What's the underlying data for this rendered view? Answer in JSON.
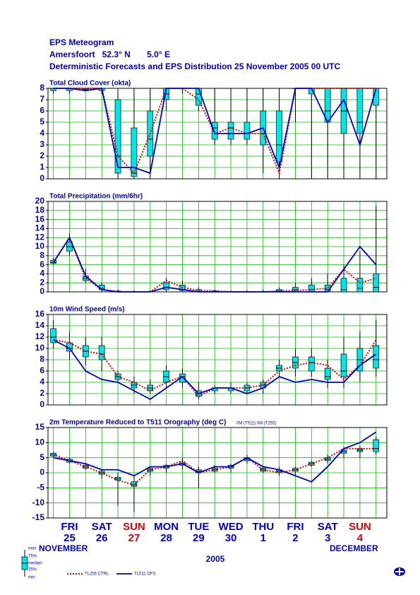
{
  "header": {
    "title": "EPS Meteogram",
    "location": "Amersfoort   52.3° N       5.0° E",
    "subtitle": "Deterministic Forecasts and EPS Distribution 25 November 2005  00 UTC"
  },
  "chart_data": [
    {
      "type": "box",
      "title": "Total Cloud Cover (okta)",
      "x": [
        0,
        12,
        24,
        36,
        48,
        60,
        72,
        84,
        96,
        108,
        120,
        132,
        144,
        156,
        168,
        180,
        192,
        204,
        216,
        228,
        240
      ],
      "xlim": [
        -4,
        248
      ],
      "xticks": [
        0,
        12,
        24,
        36,
        48,
        60,
        72,
        84,
        96,
        108,
        120,
        132,
        144,
        156,
        168,
        180,
        192,
        204,
        216,
        228,
        240
      ],
      "ylim": [
        0,
        8
      ],
      "yticks": [
        0,
        1,
        2,
        3,
        4,
        5,
        6,
        7,
        8
      ],
      "grid": true,
      "box": {
        "min": [
          7.5,
          7.5,
          7.8,
          7.5,
          0,
          0,
          0,
          6,
          7.5,
          6,
          3,
          3,
          3,
          0.5,
          0,
          5,
          0,
          0,
          0,
          0,
          0
        ],
        "q1": [
          7.8,
          7.8,
          7.9,
          7.8,
          0.5,
          0.2,
          2,
          7,
          8,
          6.5,
          3.5,
          3.5,
          3.5,
          3,
          1.5,
          8,
          7.5,
          5,
          4,
          4,
          6.5
        ],
        "median": [
          8,
          8,
          8,
          8,
          2,
          0.5,
          3.5,
          7.5,
          8,
          7.5,
          4.5,
          4.5,
          4,
          4,
          3,
          8,
          8,
          6,
          6,
          5,
          8
        ],
        "q3": [
          8,
          8,
          8,
          8,
          7,
          4.5,
          6,
          8,
          8,
          8,
          5,
          5,
          5,
          6,
          6,
          8,
          8,
          8,
          8,
          8,
          8
        ],
        "max": [
          8,
          8,
          8,
          8,
          8,
          8,
          8,
          8,
          8,
          8,
          8,
          8,
          8,
          8,
          8,
          8,
          8,
          8,
          8,
          8,
          8
        ]
      },
      "series": [
        {
          "values": [
            8,
            8,
            8,
            8,
            2,
            0.5,
            4,
            8,
            8,
            7,
            4,
            4.5,
            4,
            4,
            0.5,
            8,
            8,
            8,
            8,
            8,
            8
          ]
        },
        {
          "values": [
            8,
            8,
            7.8,
            8,
            1,
            1,
            0.5,
            8,
            8,
            8,
            4,
            4,
            4,
            4.5,
            1,
            8,
            8,
            5,
            7,
            3,
            8
          ]
        }
      ]
    },
    {
      "type": "box",
      "title": "Total Precipitation (mm/6hr)",
      "x": [
        0,
        12,
        24,
        36,
        48,
        60,
        72,
        84,
        96,
        108,
        120,
        132,
        144,
        156,
        168,
        180,
        192,
        204,
        216,
        228,
        240
      ],
      "xlim": [
        -4,
        248
      ],
      "xticks": [
        0,
        12,
        24,
        36,
        48,
        60,
        72,
        84,
        96,
        108,
        120,
        132,
        144,
        156,
        168,
        180,
        192,
        204,
        216,
        228,
        240
      ],
      "ylim": [
        0,
        20
      ],
      "yticks": [
        0,
        2,
        4,
        6,
        8,
        10,
        12,
        14,
        16,
        18,
        20
      ],
      "grid": true,
      "box": {
        "min": [
          6,
          8,
          2,
          0,
          0,
          0,
          0,
          0,
          0,
          0,
          0,
          0,
          0,
          0,
          0,
          0,
          0,
          0,
          0,
          0,
          0
        ],
        "q1": [
          6.3,
          9,
          2.5,
          0.5,
          0,
          0,
          0,
          0.5,
          0.3,
          0,
          0,
          0,
          0,
          0,
          0,
          0,
          0,
          0,
          0,
          0,
          0
        ],
        "median": [
          6.5,
          10,
          3,
          0.8,
          0,
          0,
          0,
          1,
          0.5,
          0.1,
          0,
          0,
          0,
          0,
          0.2,
          0.5,
          0.5,
          0.5,
          0.5,
          0.8,
          1
        ],
        "q3": [
          7,
          11,
          3.5,
          1.5,
          0.2,
          0.1,
          0.1,
          2,
          1.5,
          0.5,
          0.2,
          0.1,
          0.1,
          0.1,
          0.5,
          1,
          1.5,
          1.5,
          3,
          3,
          4
        ],
        "max": [
          7.5,
          13,
          5,
          2,
          0.5,
          0.3,
          0.3,
          3,
          2.5,
          1,
          0.5,
          0.3,
          0.3,
          0.5,
          1,
          2,
          3,
          4,
          6,
          9,
          19
        ]
      },
      "series": [
        {
          "values": [
            6.5,
            12,
            3,
            0.5,
            0,
            0,
            0,
            2.5,
            1,
            0.3,
            0.2,
            0,
            0,
            0,
            0.2,
            0.3,
            0.5,
            0.8,
            5,
            2,
            3
          ]
        },
        {
          "values": [
            6.5,
            12,
            3.5,
            0.5,
            0,
            0,
            0,
            1,
            0.5,
            0,
            0,
            0,
            0,
            0,
            0,
            0,
            0,
            0,
            5,
            10,
            6
          ]
        }
      ]
    },
    {
      "type": "box",
      "title": "10m Wind Speed (m/s)",
      "x": [
        0,
        12,
        24,
        36,
        48,
        60,
        72,
        84,
        96,
        108,
        120,
        132,
        144,
        156,
        168,
        180,
        192,
        204,
        216,
        228,
        240
      ],
      "xlim": [
        -4,
        248
      ],
      "xticks": [
        0,
        12,
        24,
        36,
        48,
        60,
        72,
        84,
        96,
        108,
        120,
        132,
        144,
        156,
        168,
        180,
        192,
        204,
        216,
        228,
        240
      ],
      "ylim": [
        0,
        16
      ],
      "yticks": [
        0,
        2,
        4,
        6,
        8,
        10,
        12,
        14,
        16
      ],
      "grid": true,
      "box": {
        "min": [
          10,
          8,
          7,
          6,
          4,
          2,
          2,
          3,
          3,
          1,
          2,
          2,
          2,
          2,
          5,
          5,
          5,
          3,
          3,
          4,
          5
        ],
        "q1": [
          11,
          9.5,
          8.5,
          8,
          4.5,
          3,
          2.5,
          4,
          4,
          1.5,
          2.5,
          2.5,
          2.5,
          3,
          6,
          6.5,
          6,
          4.5,
          5,
          6,
          6.5
        ],
        "median": [
          12,
          10,
          9.5,
          9,
          5,
          3.5,
          3,
          5,
          5,
          2,
          3,
          3,
          3,
          3.5,
          6.5,
          7.5,
          7.5,
          5,
          6,
          8,
          8
        ],
        "q3": [
          13.5,
          11,
          10.5,
          10.5,
          5.5,
          4,
          3.5,
          6,
          5.5,
          2.5,
          3,
          3,
          3.5,
          4,
          7,
          8.5,
          8.5,
          6.5,
          9,
          10,
          10.5
        ],
        "max": [
          15,
          13,
          12,
          12,
          6,
          5,
          4.5,
          7,
          6.5,
          4,
          3.5,
          4,
          4,
          4.5,
          8,
          10,
          10,
          8,
          12,
          13,
          15
        ]
      },
      "series": [
        {
          "values": [
            11.5,
            11,
            9.5,
            9,
            5,
            4,
            2.5,
            4,
            5,
            1.5,
            3,
            3,
            3,
            3.5,
            6,
            7,
            7.5,
            7,
            4.5,
            7,
            11.5
          ]
        },
        {
          "values": [
            11.5,
            10,
            6,
            4.5,
            4,
            2.5,
            1,
            3,
            5,
            2,
            3,
            3,
            2,
            3,
            5,
            4,
            4.5,
            4,
            4,
            7,
            9
          ]
        }
      ]
    },
    {
      "type": "box",
      "title": "2m Temperature Reduced to T511 Orography (deg C)",
      "note": "0M (T511) 0M (T255)",
      "x": [
        0,
        12,
        24,
        36,
        48,
        60,
        72,
        84,
        96,
        108,
        120,
        132,
        144,
        156,
        168,
        180,
        192,
        204,
        216,
        228,
        240
      ],
      "xlim": [
        -4,
        248
      ],
      "xticks": [
        0,
        12,
        24,
        36,
        48,
        60,
        72,
        84,
        96,
        108,
        120,
        132,
        144,
        156,
        168,
        180,
        192,
        204,
        216,
        228,
        240
      ],
      "ylim": [
        -15,
        15
      ],
      "yticks": [
        -15,
        -10,
        -5,
        0,
        5,
        10,
        15
      ],
      "grid": true,
      "box": {
        "min": [
          5,
          3,
          1,
          -2,
          -11,
          -13,
          -1,
          0,
          1,
          -5,
          0,
          0,
          3,
          0,
          -1,
          -1,
          2,
          3,
          5,
          5,
          6
        ],
        "q1": [
          5.5,
          3.5,
          1.5,
          -0.5,
          -2.5,
          -4.5,
          0.5,
          1.5,
          2.5,
          0,
          0.5,
          1.5,
          4,
          0.5,
          0,
          0.5,
          2.5,
          4,
          6.5,
          7,
          7
        ],
        "median": [
          6,
          4,
          2,
          0,
          -2,
          -4,
          1,
          2,
          3,
          0.5,
          1,
          2,
          4.5,
          1,
          0.5,
          1,
          3,
          4.5,
          7,
          7.5,
          8
        ],
        "q3": [
          6.5,
          4.5,
          2.5,
          0.5,
          -1.5,
          -3,
          1.5,
          2.5,
          3.5,
          1,
          1.5,
          2.5,
          5,
          1.5,
          1,
          1.5,
          3.5,
          5,
          7.5,
          8,
          11
        ],
        "max": [
          7,
          5,
          3,
          1,
          0,
          -1,
          2,
          3,
          5,
          2,
          2.5,
          3,
          6,
          2,
          2,
          2,
          4,
          6,
          8.5,
          9,
          12
        ]
      },
      "series": [
        {
          "values": [
            6,
            4,
            2,
            0,
            -2.5,
            -4,
            1,
            2,
            4,
            0,
            1,
            2,
            5,
            1,
            0,
            1,
            3,
            5,
            8,
            8,
            8
          ]
        },
        {
          "values": [
            5,
            4,
            3,
            1,
            1,
            -1,
            2,
            2,
            3,
            0,
            2,
            2,
            5,
            2,
            1,
            -1,
            -3,
            2,
            8,
            10,
            13.5
          ]
        }
      ]
    }
  ],
  "days": [
    {
      "name": "FRI",
      "date": "25",
      "color": "#0000cc"
    },
    {
      "name": "SAT",
      "date": "26",
      "color": "#0000cc"
    },
    {
      "name": "SUN",
      "date": "27",
      "color": "#e00000"
    },
    {
      "name": "MON",
      "date": "28",
      "color": "#0000cc"
    },
    {
      "name": "TUE",
      "date": "29",
      "color": "#0000cc"
    },
    {
      "name": "WED",
      "date": "30",
      "color": "#0000cc"
    },
    {
      "name": "THU",
      "date": "1",
      "color": "#0000cc"
    },
    {
      "name": "FRI",
      "date": "2",
      "color": "#0000cc"
    },
    {
      "name": "SAT",
      "date": "3",
      "color": "#0000cc"
    },
    {
      "name": "SUN",
      "date": "4",
      "color": "#e00000"
    }
  ],
  "months": {
    "first": "NOVEMBER",
    "second": "DECEMBER",
    "year": "2005"
  },
  "legend": {
    "box": [
      "max",
      "75%",
      "median",
      "25%",
      "min"
    ],
    "lines": [
      {
        "name": "TL255 CTRL",
        "color": "#e00000",
        "dash": true
      },
      {
        "name": "TL511 OFS",
        "color": "#0000cc",
        "dash": false
      }
    ]
  }
}
